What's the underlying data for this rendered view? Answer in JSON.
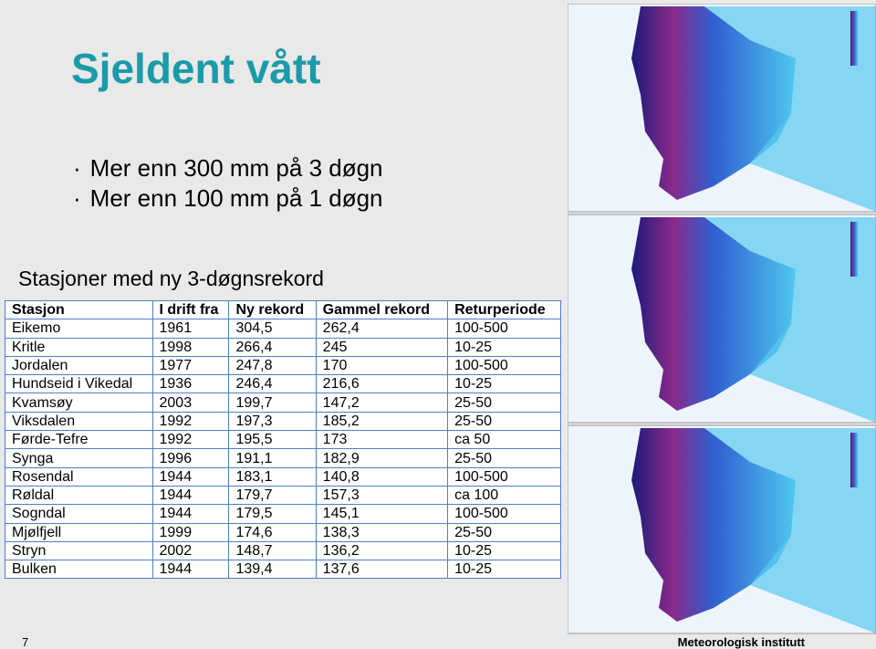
{
  "header": {
    "title": "Sjeldent vått"
  },
  "bullets": [
    "Mer enn 300 mm på 3 døgn",
    "Mer enn 100 mm på 1 døgn"
  ],
  "subtitle": "Stasjoner med ny 3-døgnsrekord",
  "table": {
    "columns": [
      "Stasjon",
      "I drift fra",
      "Ny rekord",
      "Gammel rekord",
      "Returperiode"
    ],
    "rows": [
      [
        "Eikemo",
        "1961",
        "304,5",
        "262,4",
        "100-500"
      ],
      [
        "Kritle",
        "1998",
        "266,4",
        "245",
        "10-25"
      ],
      [
        "Jordalen",
        "1977",
        "247,8",
        "170",
        "100-500"
      ],
      [
        "Hundseid i Vikedal",
        "1936",
        "246,4",
        "216,6",
        "10-25"
      ],
      [
        "Kvamsøy",
        "2003",
        "199,7",
        "147,2",
        "25-50"
      ],
      [
        "Viksdalen",
        "1992",
        "197,3",
        "185,2",
        "25-50"
      ],
      [
        "Førde-Tefre",
        "1992",
        "195,5",
        "173",
        "ca 50"
      ],
      [
        "Synga",
        "1996",
        "191,1",
        "182,9",
        "25-50"
      ],
      [
        "Rosendal",
        "1944",
        "183,1",
        "140,8",
        "100-500"
      ],
      [
        "Røldal",
        "1944",
        "179,7",
        "157,3",
        "ca 100"
      ],
      [
        "Sogndal",
        "1944",
        "179,5",
        "145,1",
        "100-500"
      ],
      [
        "Mjølfjell",
        "1999",
        "174,6",
        "138,3",
        "25-50"
      ],
      [
        "Stryn",
        "2002",
        "148,7",
        "136,2",
        "10-25"
      ],
      [
        "Bulken",
        "1944",
        "139,4",
        "137,6",
        "10-25"
      ]
    ]
  },
  "footer": {
    "page": "7",
    "organization": "Meteorologisk institutt"
  }
}
